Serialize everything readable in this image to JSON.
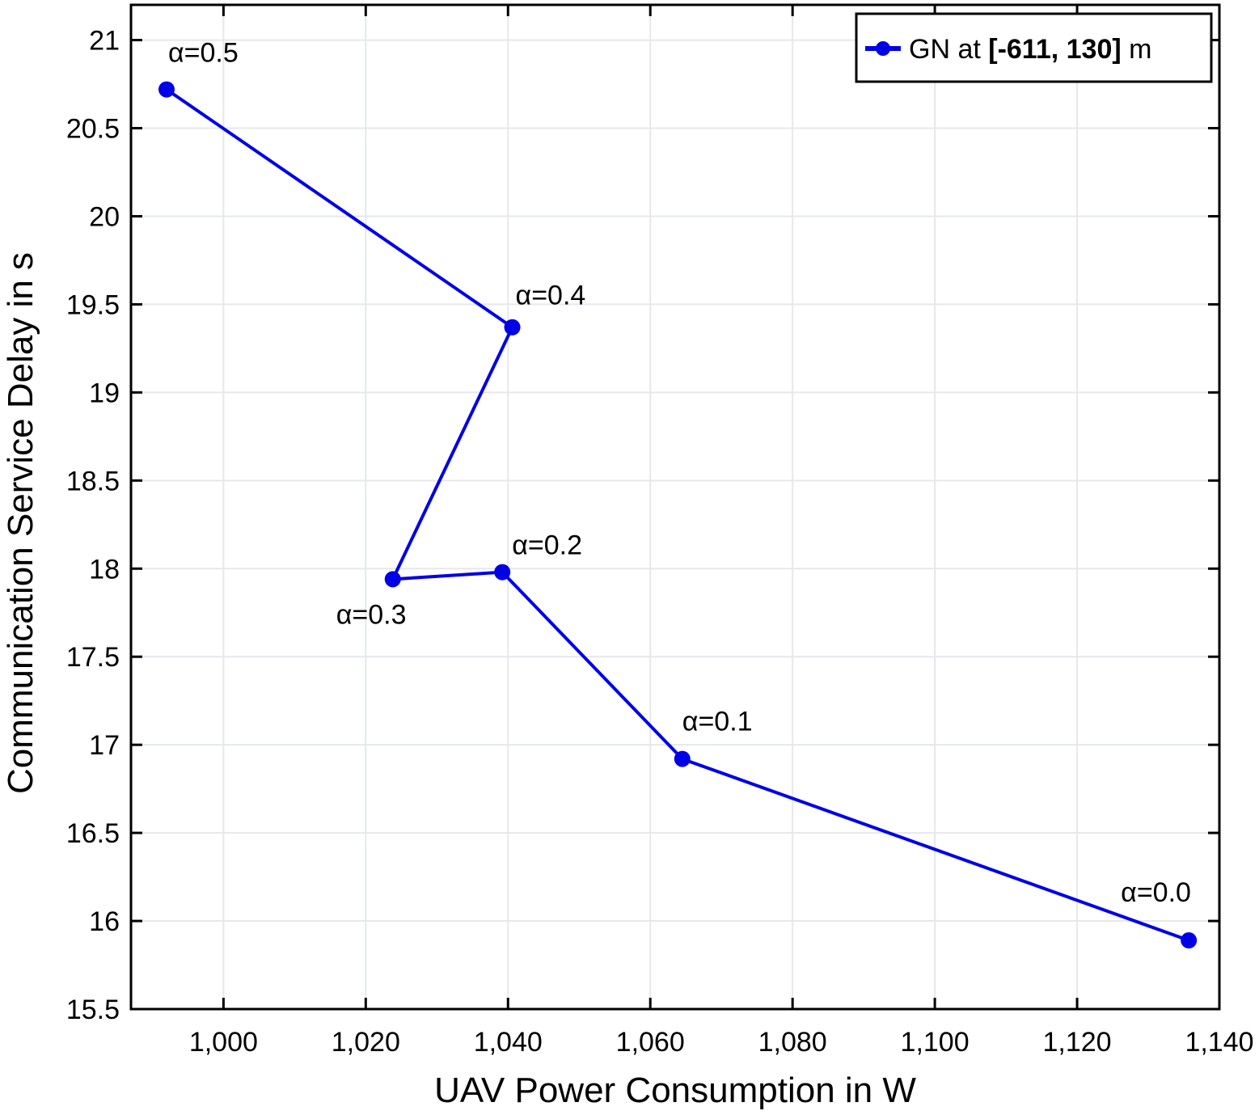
{
  "chart_data": {
    "type": "line",
    "xlabel": "UAV Power Consumption in W",
    "ylabel": "Communication Service Delay in s",
    "xlim": [
      987,
      1140
    ],
    "ylim": [
      15.5,
      21.2
    ],
    "x_ticks": [
      1000,
      1020,
      1040,
      1060,
      1080,
      1100,
      1120,
      1140
    ],
    "x_tick_labels": [
      "1,000",
      "1,020",
      "1,040",
      "1,060",
      "1,080",
      "1,100",
      "1,120",
      "1,140"
    ],
    "y_ticks": [
      15.5,
      16,
      16.5,
      17,
      17.5,
      18,
      18.5,
      19,
      19.5,
      20,
      20.5,
      21
    ],
    "y_tick_labels": [
      "15.5",
      "16",
      "16.5",
      "17",
      "17.5",
      "18",
      "18.5",
      "19",
      "19.5",
      "20",
      "20.5",
      "21"
    ],
    "grid": true,
    "legend_position": "top-right",
    "series": [
      {
        "name_parts": [
          "GN at ",
          "[-611, 130]",
          " m"
        ],
        "color": "#0000e6",
        "points": [
          {
            "x": 992.0,
            "y": 20.72,
            "label": "α=0.5"
          },
          {
            "x": 1040.6,
            "y": 19.37,
            "label": "α=0.4"
          },
          {
            "x": 1023.8,
            "y": 17.94,
            "label": "α=0.3"
          },
          {
            "x": 1039.2,
            "y": 17.98,
            "label": "α=0.2"
          },
          {
            "x": 1064.5,
            "y": 16.92,
            "label": "α=0.1"
          },
          {
            "x": 1135.7,
            "y": 15.89,
            "label": "α=0.0"
          }
        ]
      }
    ]
  }
}
